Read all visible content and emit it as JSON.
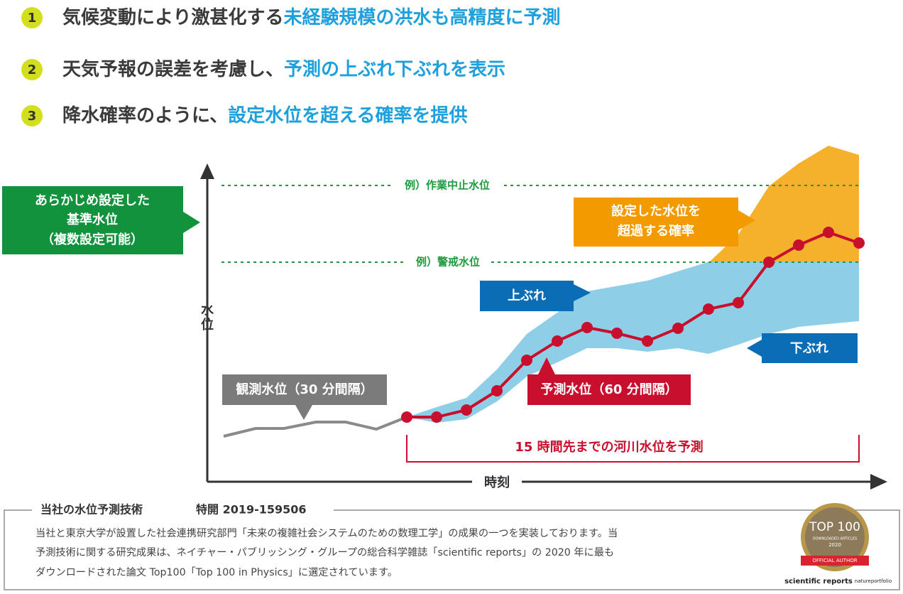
{
  "points": [
    {
      "number": "1",
      "text": "気候変動により激甚化する",
      "highlight": "未経験規模の洪水も高精度に予測"
    },
    {
      "number": "2",
      "text": "天気予報の誤差を考慮し、",
      "highlight": "予測の上ぶれ下ぶれを表示"
    },
    {
      "number": "3",
      "text": "降水確率のように、",
      "highlight": "設定水位を超える確率を提供"
    }
  ],
  "diagram": {
    "reference_box": [
      "あらかじめ設定した",
      "基準水位",
      "（複数設定可能）"
    ],
    "y_axis": [
      "水",
      "位"
    ],
    "x_axis": "時刻",
    "stop_level": "例）作業中止水位",
    "warning_level": "例）警戒水位",
    "exceed_box": [
      "設定した水位を",
      "超過する確率"
    ],
    "upper": "上ぶれ",
    "lower": "下ぶれ",
    "observed": "観測水位（30 分間隔）",
    "forecast": "予測水位（60 分間隔）",
    "horizon": "15 時間先までの河川水位を予測"
  },
  "footer": {
    "title": "当社の水位予測技術",
    "patent": "特開 2019-159506",
    "lines": [
      "当社と東京大学が設置した社会連携研究部門「未来の複雑社会システムのための数理工学」の成果の一つを実装しております。当",
      "予測技術に関する研究成果は、ネイチャー・パブリッシング・グループの総合科学雑誌「scientific reports」の 2020 年に最も",
      "ダウンロードされた論文 Top100「Top 100 in Physics」に選定されています。"
    ],
    "badge": {
      "title": "TOP 100",
      "sub": "DOWNLOADED ARTICLES",
      "year": "2020",
      "ribbon": "OFFICIAL AUTHOR",
      "journal": "scientific reports",
      "publisher": "natureportfolio"
    }
  }
}
